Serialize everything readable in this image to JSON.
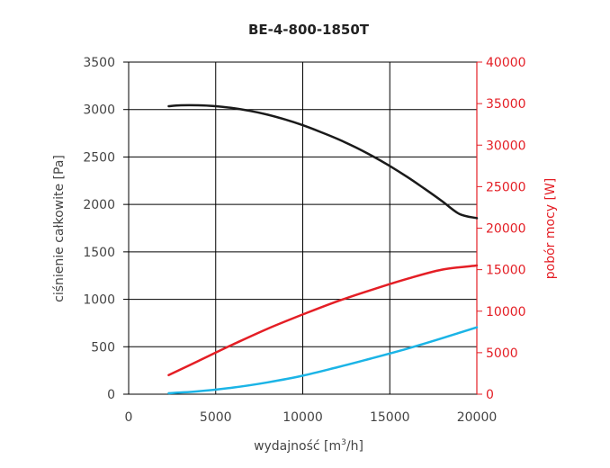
{
  "chart_data": {
    "type": "line",
    "title": "BE-4-800-1850T",
    "xlabel": {
      "pre": "wydajność [m",
      "sup": "3",
      "post": "/h]"
    },
    "ylabel": "ciśnienie całkowite [Pa]",
    "y2label": "pobór mocy [W]",
    "xlim": [
      0,
      20000
    ],
    "ylim": [
      0,
      3500
    ],
    "y2lim": [
      0,
      40000
    ],
    "x_ticks": [
      "0",
      "5000",
      "10000",
      "15000",
      "20000"
    ],
    "y_ticks": [
      "0",
      "500",
      "1000",
      "1500",
      "2000",
      "2500",
      "3000",
      "3500"
    ],
    "y2_ticks": [
      "0",
      "5000",
      "10000",
      "15000",
      "20000",
      "25000",
      "30000",
      "35000",
      "40000"
    ],
    "grid": true,
    "series": [
      {
        "axis": "left",
        "color": "#1a1a1a",
        "x": [
          2300,
          3000,
          4000,
          5000,
          6000,
          7000,
          8000,
          9000,
          10000,
          11000,
          12000,
          13000,
          14000,
          15000,
          16000,
          17000,
          18000,
          19000,
          20000
        ],
        "y": [
          3035,
          3045,
          3045,
          3035,
          3015,
          2985,
          2945,
          2895,
          2835,
          2765,
          2690,
          2605,
          2510,
          2405,
          2290,
          2165,
          2035,
          1900,
          1855
        ]
      },
      {
        "axis": "right",
        "color": "#e41e25",
        "x": [
          2300,
          4000,
          6000,
          8000,
          10000,
          12000,
          14000,
          16000,
          18000,
          20000
        ],
        "y": [
          2300,
          4000,
          6000,
          7900,
          9600,
          11200,
          12600,
          13900,
          15000,
          15500
        ]
      },
      {
        "axis": "left",
        "color": "#1bb4e6",
        "x": [
          2300,
          4000,
          6000,
          8000,
          10000,
          12000,
          14000,
          16000,
          18000,
          20000
        ],
        "y": [
          10,
          30,
          70,
          125,
          195,
          285,
          380,
          480,
          590,
          705
        ]
      }
    ]
  }
}
